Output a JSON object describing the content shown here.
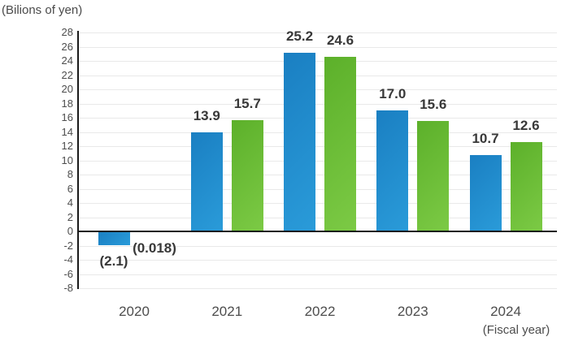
{
  "chart_data": {
    "type": "bar",
    "title": "(Bilions of yen)",
    "xlabel": "(Fiscal year)",
    "categories": [
      "2020",
      "2021",
      "2022",
      "2023",
      "2024"
    ],
    "series": [
      {
        "name": "blue",
        "color": "#1e88c9",
        "gradient_top": "#1a7fc2",
        "gradient_bottom": "#2a9bd9",
        "values": [
          -2.1,
          13.9,
          25.2,
          17.0,
          10.7
        ],
        "labels": [
          "(2.1)",
          "13.9",
          "25.2",
          "17.0",
          "10.7"
        ]
      },
      {
        "name": "green",
        "color": "#6cc238",
        "gradient_top": "#5cb02a",
        "gradient_bottom": "#7cca45",
        "values": [
          -0.018,
          15.7,
          24.6,
          15.6,
          12.6
        ],
        "labels": [
          "(0.018)",
          "15.7",
          "24.6",
          "15.6",
          "12.6"
        ]
      }
    ],
    "ylim": [
      -8,
      28
    ],
    "ytick_step": 2,
    "grid": true,
    "legend_position": "none",
    "negative_label_style": "parentheses",
    "axis_color": "#1a1a1a",
    "gridline_color": "#e9e9e9",
    "tick_text_color": "#4d4d4d",
    "value_text_color": "#383838"
  }
}
